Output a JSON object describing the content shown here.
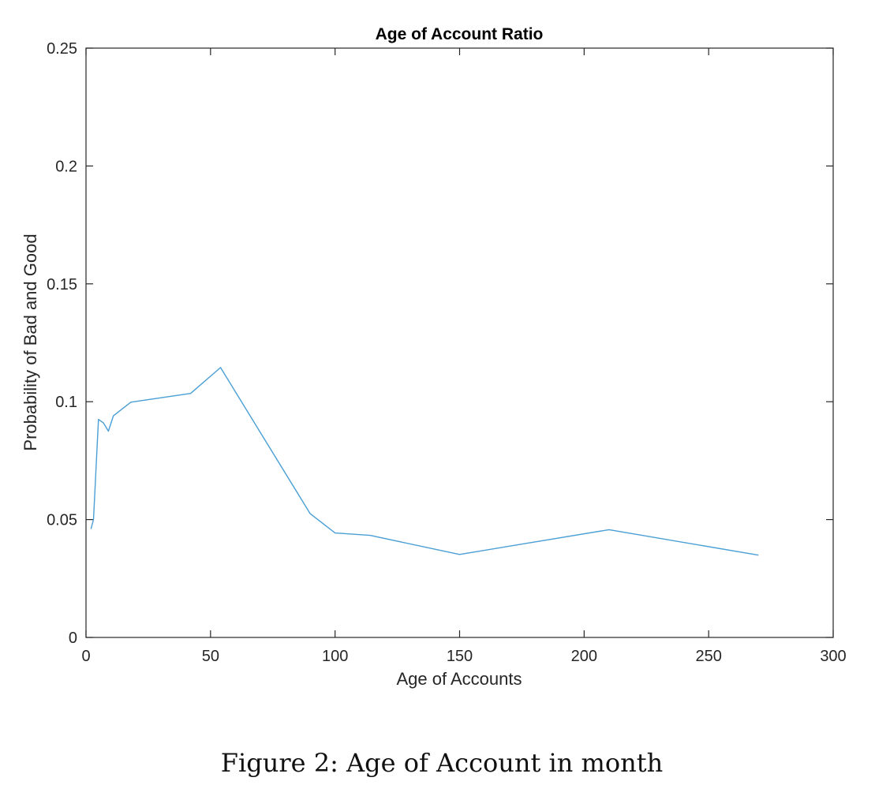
{
  "chart_data": {
    "type": "line",
    "title": "Age of Account Ratio",
    "xlabel": "Age of Accounts",
    "ylabel": "Probability of Bad and Good",
    "xlim": [
      0,
      300
    ],
    "ylim": [
      0,
      0.25
    ],
    "xticks": [
      0,
      50,
      100,
      150,
      200,
      250,
      300
    ],
    "xtick_labels": [
      "0",
      "50",
      "100",
      "150",
      "200",
      "250",
      "300"
    ],
    "yticks": [
      0,
      0.05,
      0.1,
      0.15,
      0.2,
      0.25
    ],
    "ytick_labels": [
      "0",
      "0.05",
      "0.1",
      "0.15",
      "0.2",
      "0.25"
    ],
    "grid": false,
    "series": [
      {
        "color": "#4a9fd4",
        "x": [
          2,
          3,
          5,
          7,
          9,
          11,
          18,
          42,
          54,
          90,
          100,
          114,
          150,
          210,
          270
        ],
        "y": [
          0.046,
          0.05,
          0.0925,
          0.091,
          0.0875,
          0.094,
          0.0998,
          0.1035,
          0.1145,
          0.0525,
          0.0443,
          0.0433,
          0.0352,
          0.0457,
          0.0349
        ]
      }
    ]
  },
  "caption": "Figure 2:  Age of Account in month"
}
